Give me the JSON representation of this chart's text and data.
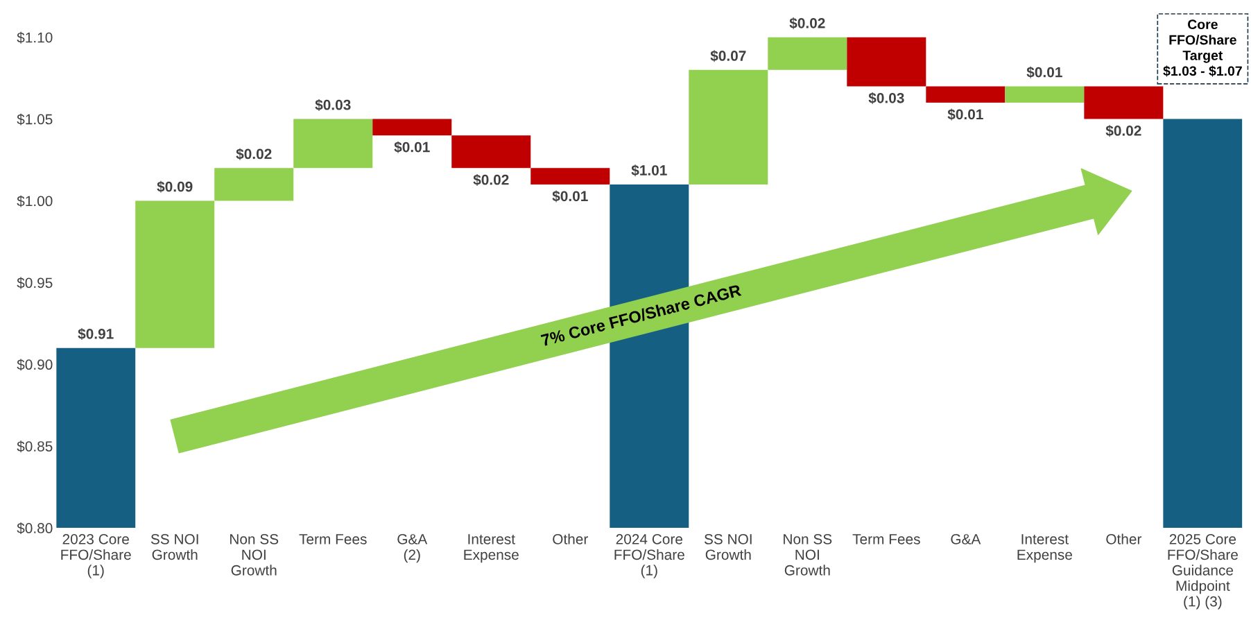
{
  "chart_data": {
    "type": "bar",
    "categories": [
      "2023 Core\nFFO/Share\n(1)",
      "SS NOI\nGrowth",
      "Non SS\nNOI\nGrowth",
      "Term Fees",
      "G&A\n(2)",
      "Interest\nExpense",
      "Other",
      "2024 Core\nFFO/Share\n(1)",
      "SS NOI\nGrowth",
      "Non SS\nNOI\nGrowth",
      "Term Fees",
      "G&A",
      "Interest\nExpense",
      "Other",
      "2025 Core\nFFO/Share\nGuidance\nMidpoint\n(1) (3)"
    ],
    "values": [
      0.91,
      0.09,
      0.02,
      0.03,
      -0.01,
      -0.02,
      -0.01,
      1.01,
      0.07,
      0.02,
      -0.03,
      -0.01,
      0.01,
      -0.02,
      1.05
    ],
    "base": [
      null,
      0.91,
      1.0,
      1.02,
      1.05,
      1.04,
      1.02,
      null,
      1.01,
      1.08,
      1.1,
      1.07,
      1.06,
      1.07,
      null
    ],
    "colors": [
      "#156082",
      "#92d050",
      "#92d050",
      "#92d050",
      "#c00000",
      "#c00000",
      "#c00000",
      "#156082",
      "#92d050",
      "#92d050",
      "#c00000",
      "#c00000",
      "#92d050",
      "#c00000",
      "#156082"
    ],
    "value_labels": [
      "$0.91",
      "$0.09",
      "$0.02",
      "$0.03",
      "$0.01",
      "$0.02",
      "$0.01",
      "$1.01",
      "$0.07",
      "$0.02",
      "$0.03",
      "$0.01",
      "$0.01",
      "$0.02",
      null
    ],
    "ylim": [
      0.8,
      1.115
    ],
    "yticks": [
      {
        "value": 0.8,
        "label": "$0.80"
      },
      {
        "value": 0.85,
        "label": "$0.85"
      },
      {
        "value": 0.9,
        "label": "$0.90"
      },
      {
        "value": 0.95,
        "label": "$0.95"
      },
      {
        "value": 1.0,
        "label": "$1.00"
      },
      {
        "value": 1.05,
        "label": "$1.05"
      },
      {
        "value": 1.1,
        "label": "$1.10"
      }
    ],
    "grid": false,
    "annotations": [
      "7% Core FFO/Share CAGR",
      "Core\nFFO/Share\nTarget\n$1.03 - $1.07"
    ]
  }
}
